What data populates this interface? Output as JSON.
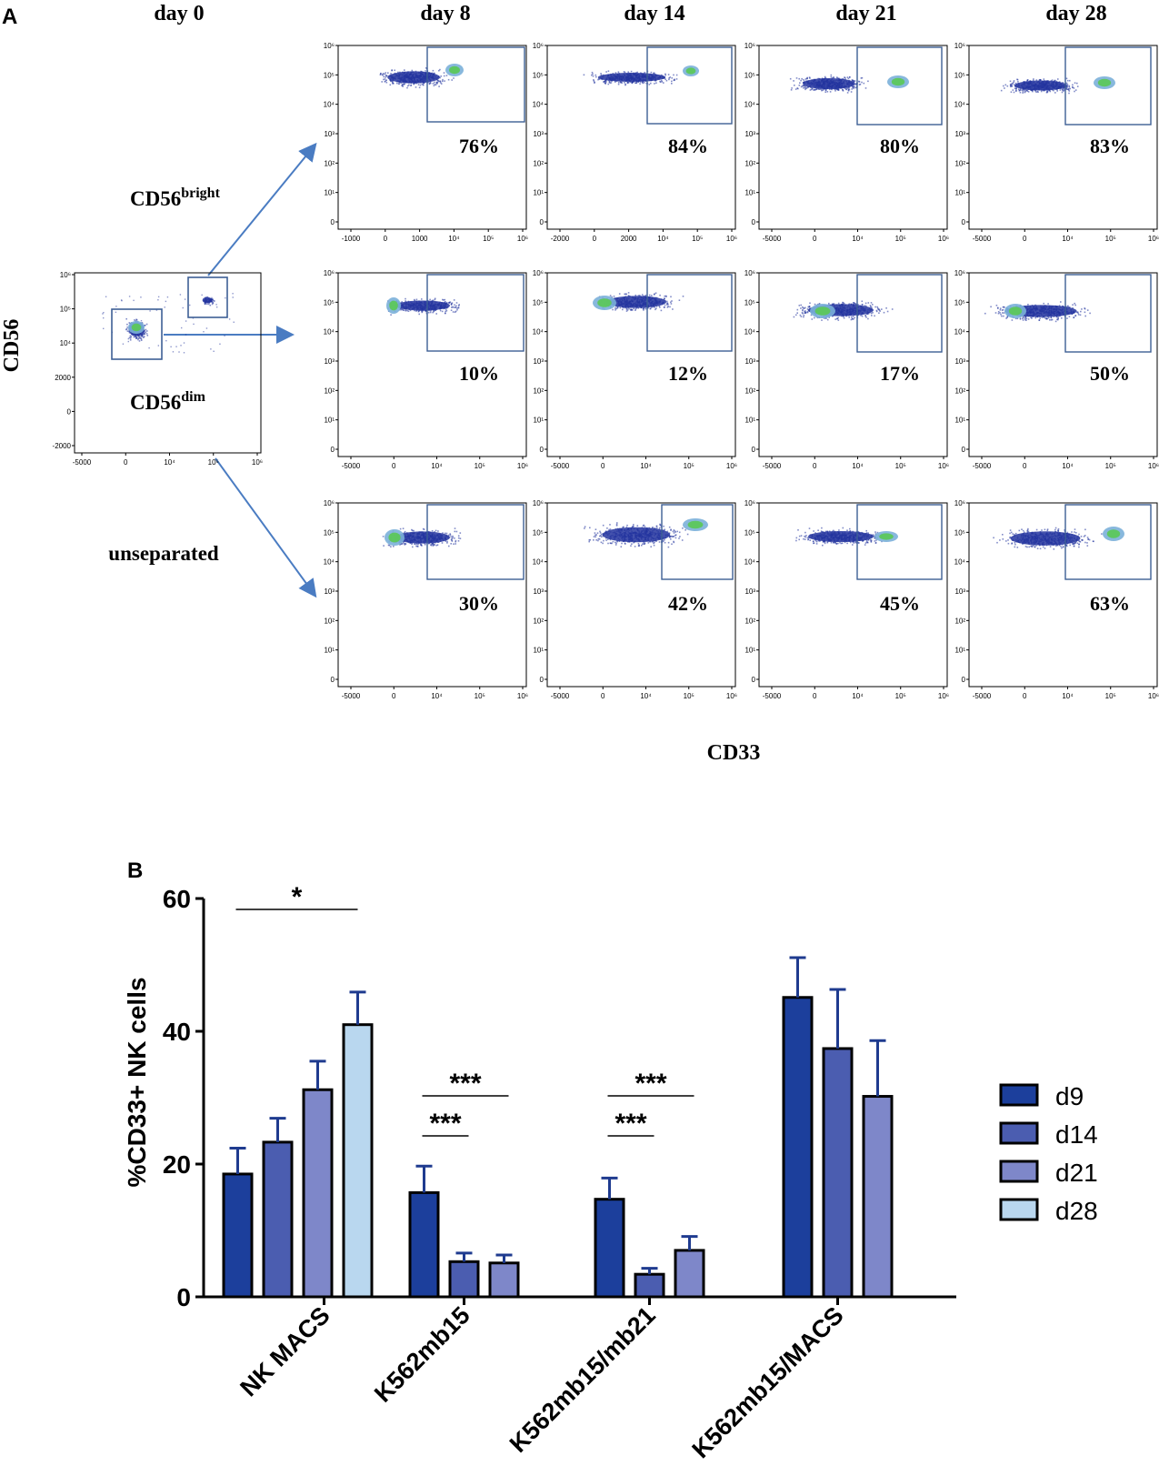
{
  "panel_a": {
    "label": "A",
    "day0_label": "day 0",
    "days": [
      "day 8",
      "day 14",
      "day 21",
      "day 28"
    ],
    "y_axis_label": "CD56",
    "x_axis_label": "CD33",
    "gates": {
      "bright_base": "CD56",
      "bright_sup": "bright",
      "dim_base": "CD56",
      "dim_sup": "dim",
      "unseparated": "unseparated"
    },
    "ytick_labels": [
      "10⁶",
      "10⁵",
      "10⁴",
      "10³",
      "10²",
      "10¹",
      "0"
    ],
    "day0_yticks": [
      "10⁶",
      "10⁵",
      "10⁴",
      "2000",
      "0",
      "-2000"
    ],
    "day0_xticks": [
      "-5000",
      "0",
      "10⁴",
      "10⁵",
      "10⁶"
    ],
    "xticks_sets": [
      [
        "-1000",
        "0",
        "1000",
        "10⁴",
        "10⁵",
        "10⁶"
      ],
      [
        "-2000",
        "0",
        "2000",
        "10⁴",
        "10⁵",
        "10⁶"
      ],
      [
        "-5000",
        "0",
        "10⁴",
        "10⁵",
        "10⁶"
      ],
      [
        "-5000",
        "0",
        "10⁴",
        "10⁵",
        "10⁶"
      ]
    ],
    "xticks_default": [
      "-5000",
      "0",
      "10⁴",
      "10⁵",
      "10⁶"
    ],
    "percentages": [
      [
        "76%",
        "84%",
        "80%",
        "83%"
      ],
      [
        "10%",
        "12%",
        "17%",
        "50%"
      ],
      [
        "30%",
        "42%",
        "45%",
        "63%"
      ]
    ]
  },
  "chart_data": {
    "type": "bar",
    "panel_label": "B",
    "title": "",
    "ylabel": "%CD33+ NK cells",
    "xlabel": "",
    "ylim": [
      0,
      60
    ],
    "yticks": [
      0,
      20,
      40,
      60
    ],
    "categories": [
      "NK MACS",
      "K562mb15",
      "K562mb15/mb21",
      "K562mb15/MACS"
    ],
    "series": [
      {
        "name": "d9",
        "color": "#1c3f9c",
        "values": [
          18.5,
          15.7,
          14.7,
          45.1
        ],
        "errors": [
          3.9,
          4.0,
          3.2,
          6.0
        ]
      },
      {
        "name": "d14",
        "color": "#4b5db0",
        "values": [
          23.3,
          5.3,
          3.4,
          37.4
        ],
        "errors": [
          3.6,
          1.3,
          0.9,
          8.9
        ]
      },
      {
        "name": "d21",
        "color": "#7e87c9",
        "values": [
          31.2,
          5.1,
          7.0,
          30.2
        ],
        "errors": [
          4.3,
          1.2,
          2.1,
          8.4
        ]
      },
      {
        "name": "d28",
        "color": "#b9d7ef",
        "values": [
          41.0,
          null,
          null,
          null
        ],
        "errors": [
          4.9,
          null,
          null,
          null
        ]
      }
    ],
    "significance": [
      {
        "label": "*",
        "category": 0,
        "from_series": 0,
        "to_series": 3
      },
      {
        "label": "***",
        "category": 1,
        "from_series": 0,
        "to_series": 2
      },
      {
        "label": "***",
        "category": 1,
        "from_series": 0,
        "to_series": 1
      },
      {
        "label": "***",
        "category": 2,
        "from_series": 0,
        "to_series": 2
      },
      {
        "label": "***",
        "category": 2,
        "from_series": 0,
        "to_series": 1
      }
    ],
    "legend_position": "right"
  }
}
